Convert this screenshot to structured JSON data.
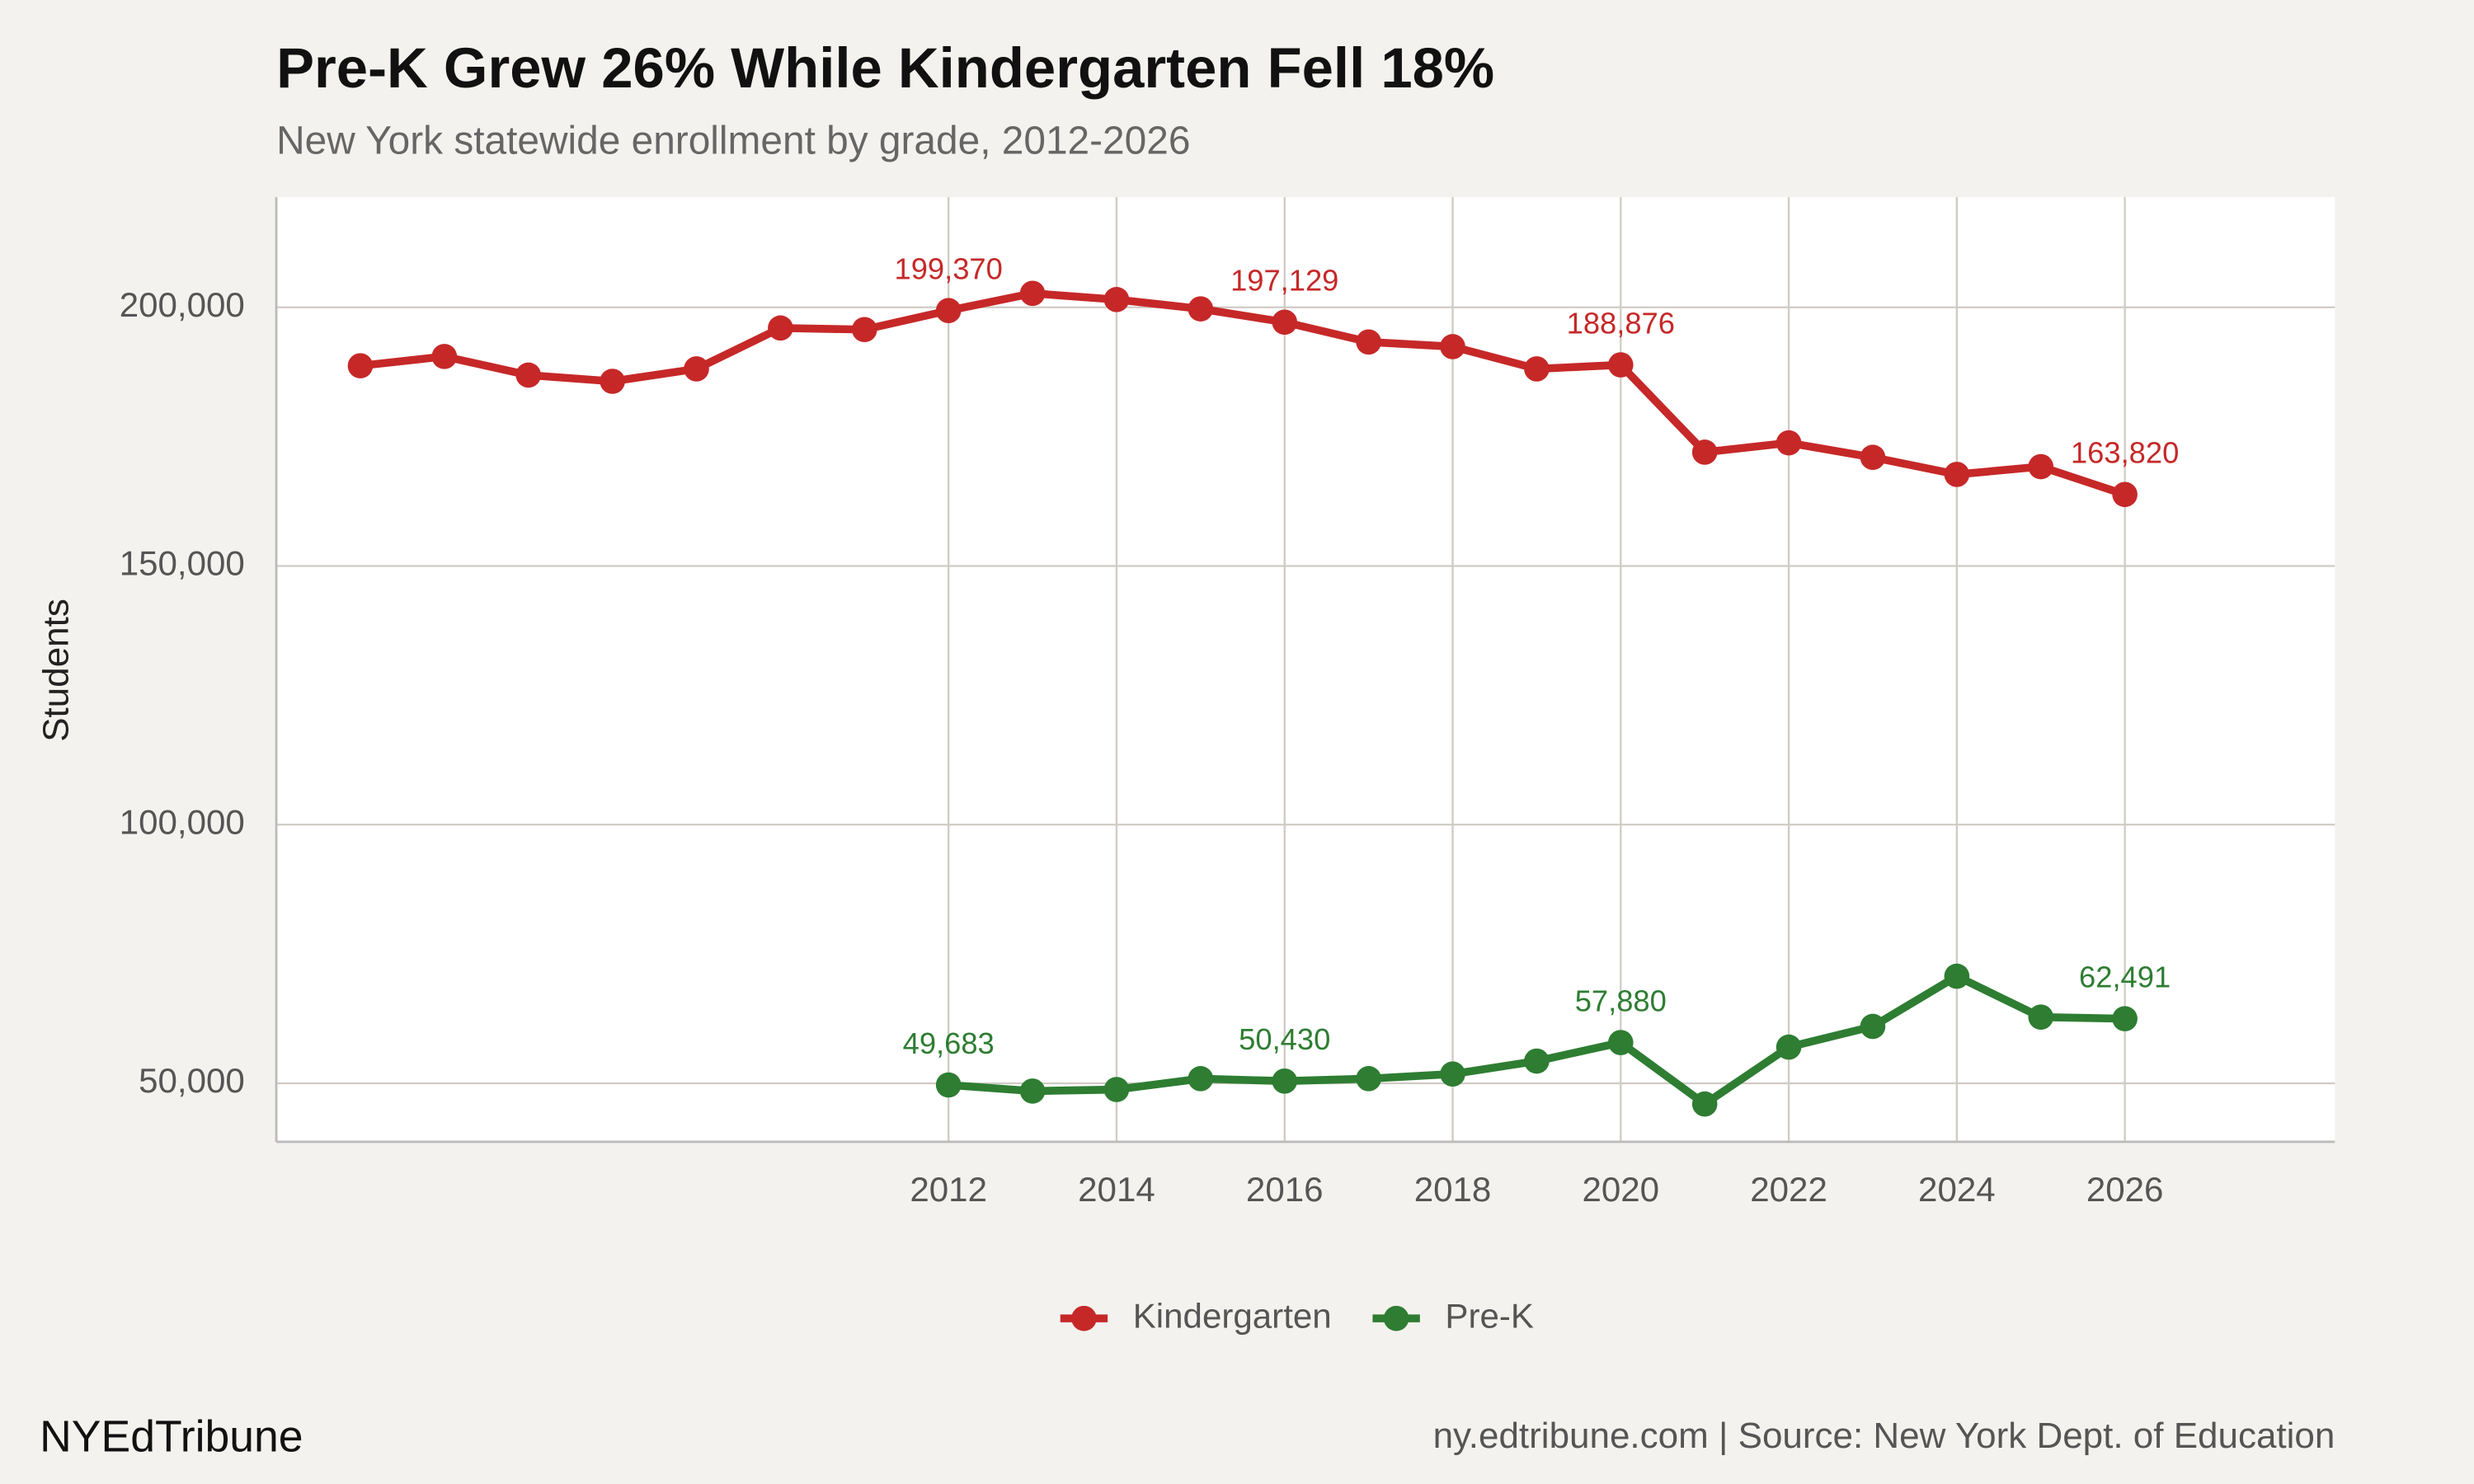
{
  "chart_data": {
    "type": "line",
    "title": "Pre-K Grew 26% While Kindergarten Fell 18%",
    "subtitle": "New York statewide enrollment by grade, 2012-2026",
    "y_label": "Students",
    "brand": "NYEdTribune",
    "source": "ny.edtribune.com | Source: New York Dept. of Education",
    "grid": true,
    "legend": "bottom",
    "xlim": [
      2004,
      2028.5
    ],
    "xticks": [
      2012,
      2014,
      2016,
      2018,
      2020,
      2022,
      2024,
      2026
    ],
    "ylim": [
      38700,
      221300
    ],
    "yticks": [
      {
        "value": 50000,
        "label": "50,000"
      },
      {
        "value": 100000,
        "label": "100,000"
      },
      {
        "value": 150000,
        "label": "150,000"
      },
      {
        "value": 200000,
        "label": "200,000"
      }
    ],
    "series": [
      {
        "name": "Kindergarten",
        "color": "#c62828",
        "x": [
          2005,
          2006,
          2007,
          2008,
          2009,
          2010,
          2011,
          2012,
          2013,
          2014,
          2015,
          2016,
          2017,
          2018,
          2019,
          2020,
          2021,
          2022,
          2023,
          2024,
          2025,
          2026
        ],
        "values": [
          188700,
          190500,
          186900,
          185700,
          188100,
          196000,
          195700,
          199370,
          202700,
          201500,
          199700,
          197129,
          193300,
          192400,
          188100,
          188876,
          172000,
          173800,
          171000,
          167700,
          169200,
          163820
        ],
        "value_labels": [
          null,
          null,
          null,
          null,
          null,
          null,
          null,
          "199,370",
          null,
          null,
          null,
          "197,129",
          null,
          null,
          null,
          "188,876",
          null,
          null,
          null,
          null,
          null,
          "163,820"
        ]
      },
      {
        "name": "Pre-K",
        "color": "#2e7d32",
        "x": [
          2012,
          2013,
          2014,
          2015,
          2016,
          2017,
          2018,
          2019,
          2020,
          2021,
          2022,
          2023,
          2024,
          2025,
          2026
        ],
        "values": [
          49683,
          48500,
          48800,
          50900,
          50430,
          50900,
          51800,
          54300,
          57880,
          46000,
          57000,
          61000,
          70700,
          62800,
          62491
        ],
        "value_labels": [
          "49,683",
          null,
          null,
          null,
          "50,430",
          null,
          null,
          null,
          "57,880",
          null,
          null,
          null,
          null,
          null,
          "62,491"
        ]
      }
    ]
  }
}
